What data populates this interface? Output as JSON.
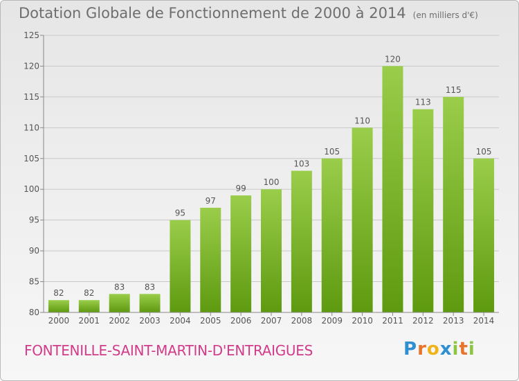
{
  "header": {
    "title": "Dotation Globale de Fonctionnement de 2000 à 2014",
    "subtitle": "(en milliers d'€)"
  },
  "commune": "FONTENILLE-SAINT-MARTIN-D'ENTRAIGUES",
  "logo": {
    "text": "Proxiti",
    "icon": "proxiti-logo"
  },
  "colors": {
    "bar_top": "#9acd4a",
    "bar_bottom": "#5e9a10",
    "commune_text": "#d23b8a",
    "title_text": "#6e6e6e"
  },
  "chart_data": {
    "type": "bar",
    "categories": [
      "2000",
      "2001",
      "2002",
      "2003",
      "2004",
      "2005",
      "2006",
      "2007",
      "2008",
      "2009",
      "2010",
      "2011",
      "2012",
      "2013",
      "2014"
    ],
    "values": [
      82,
      82,
      83,
      83,
      95,
      97,
      99,
      100,
      103,
      105,
      110,
      120,
      113,
      115,
      105
    ],
    "ylim": [
      80,
      125
    ],
    "yticks": [
      80,
      85,
      90,
      95,
      100,
      105,
      110,
      115,
      120,
      125
    ],
    "grid": true,
    "data_labels": true
  }
}
